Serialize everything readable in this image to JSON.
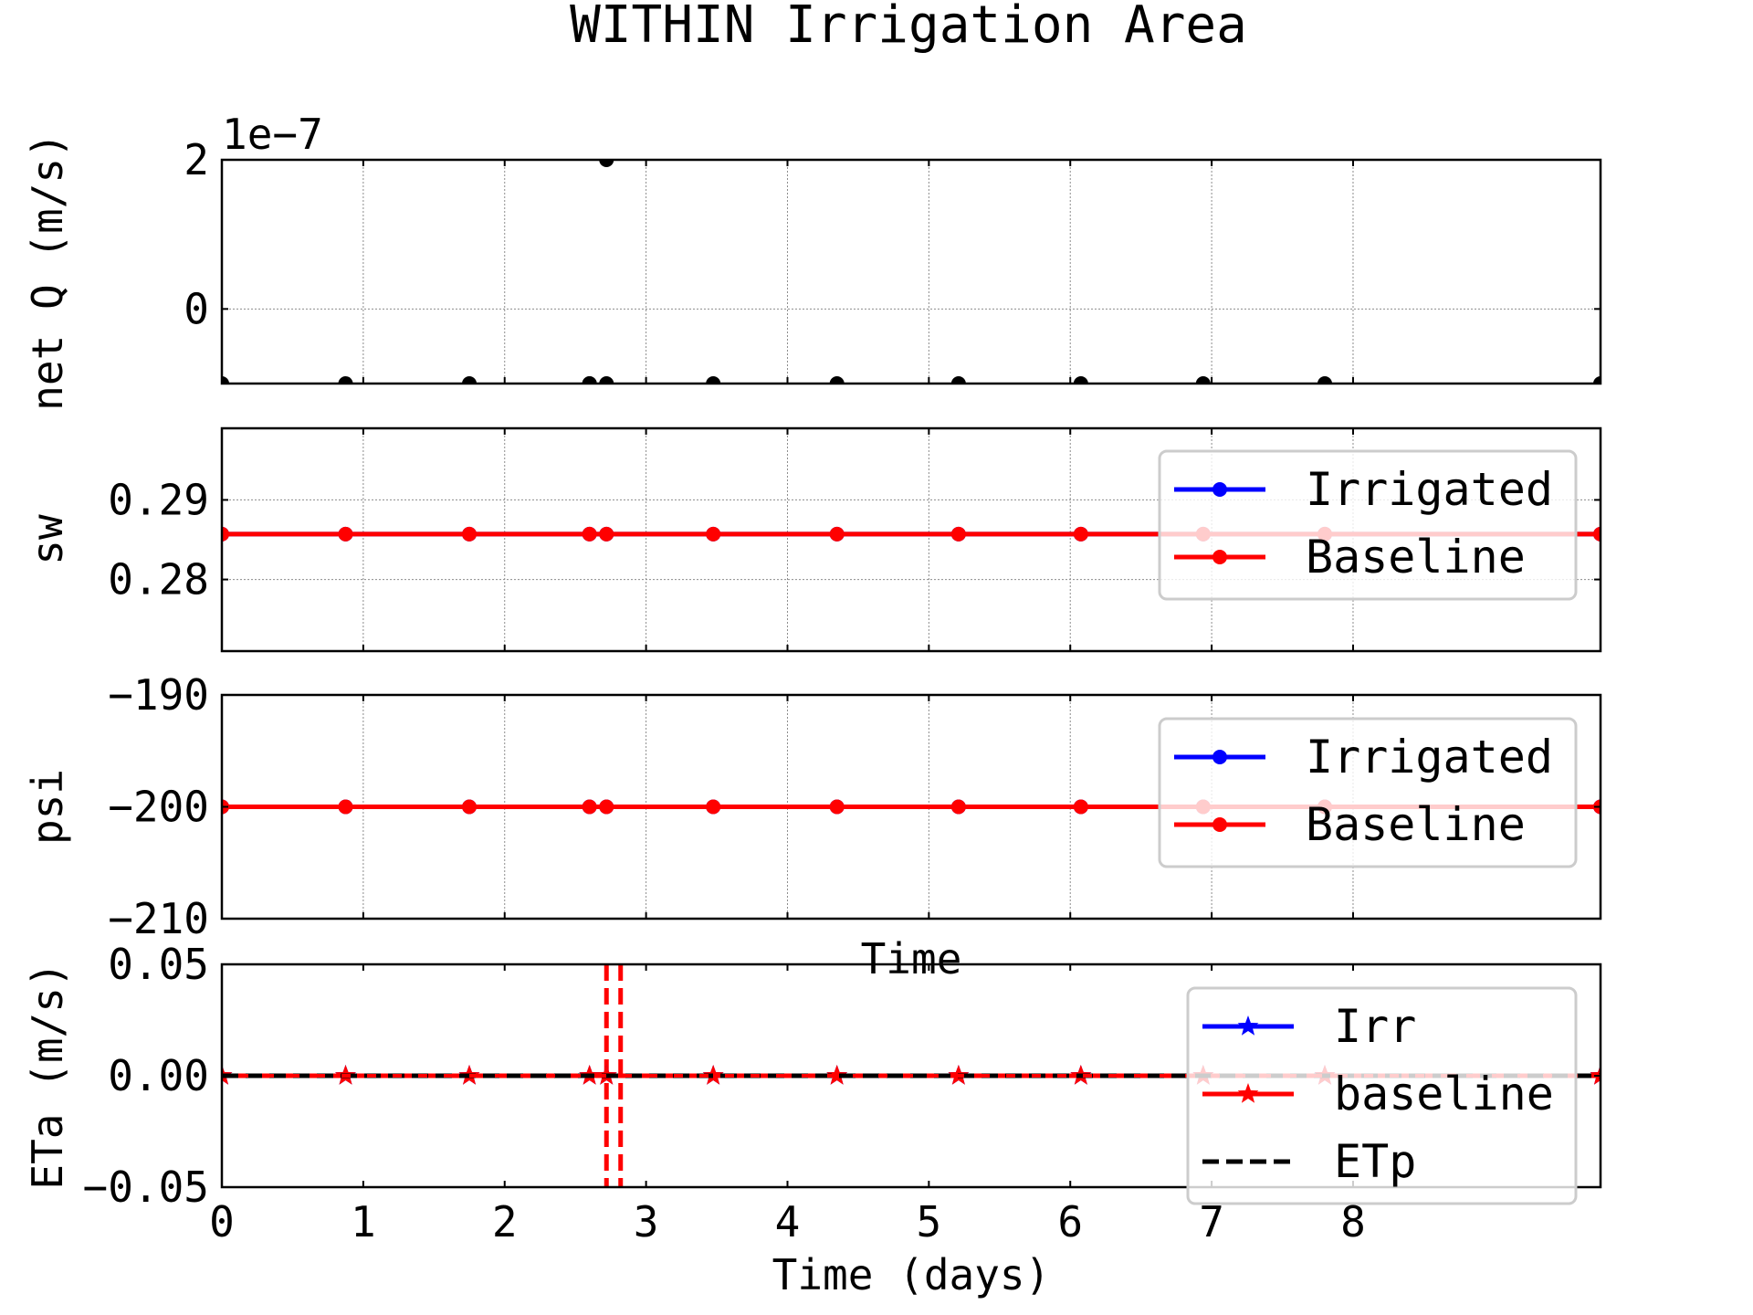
{
  "figure": {
    "title": "WITHIN Irrigation Area"
  },
  "chart_data": [
    {
      "type": "scatter",
      "id": "netq",
      "title": "",
      "xlabel": "",
      "ylabel": "net Q (m/s)",
      "offset_label": "1e−7",
      "xlim": [
        0,
        9.75
      ],
      "ylim": [
        -1.0,
        2.0
      ],
      "x_ticks": [
        1,
        2,
        3,
        4,
        5,
        6,
        7,
        8
      ],
      "x_tick_labels": [],
      "y_ticks": [
        0,
        2
      ],
      "y_tick_labels": [
        "0",
        "2"
      ],
      "grid": true,
      "legend": null,
      "series": [
        {
          "color": "#000000",
          "marker": "circle",
          "x": [
            0,
            0.875,
            1.75,
            2.6,
            2.72,
            3.475,
            4.35,
            5.21,
            6.075,
            6.94,
            7.8
          ],
          "y": [
            -1.0,
            -1.0,
            -1.0,
            -1.0,
            2.0,
            -1.0,
            -1.0,
            -1.0,
            -1.0,
            -1.0,
            -1.0
          ],
          "extra_points": [
            [
              2.6,
              -1.0
            ],
            [
              2.72,
              -1.0
            ]
          ]
        }
      ]
    },
    {
      "type": "line",
      "id": "sw",
      "title": "",
      "xlabel": "",
      "ylabel": "sw",
      "xlim": [
        0,
        9.75
      ],
      "ylim": [
        0.271,
        0.299
      ],
      "x_ticks": [
        1,
        2,
        3,
        4,
        5,
        6,
        7,
        8
      ],
      "x_tick_labels": [],
      "y_ticks": [
        0.28,
        0.29
      ],
      "y_tick_labels": [
        "0.28",
        "0.29"
      ],
      "grid": true,
      "legend": "top-right",
      "series": [
        {
          "name": "Irrigated",
          "color": "#0000ff",
          "marker": "circle",
          "x": [
            0,
            0.875,
            1.75,
            2.6,
            2.72,
            3.475,
            4.35,
            5.21,
            6.075,
            6.94,
            7.8
          ],
          "y": [
            0.2857,
            0.2857,
            0.2857,
            0.2857,
            0.2857,
            0.2857,
            0.2857,
            0.2857,
            0.2857,
            0.2857,
            0.2857
          ]
        },
        {
          "name": "Baseline",
          "color": "#ff0000",
          "marker": "circle",
          "x": [
            0,
            0.875,
            1.75,
            2.6,
            2.72,
            3.475,
            4.35,
            5.21,
            6.075,
            6.94,
            7.8
          ],
          "y": [
            0.2857,
            0.2857,
            0.2857,
            0.2857,
            0.2857,
            0.2857,
            0.2857,
            0.2857,
            0.2857,
            0.2857,
            0.2857
          ]
        }
      ]
    },
    {
      "type": "line",
      "id": "psi",
      "title": "",
      "xlabel": "Time",
      "ylabel": "psi",
      "xlim": [
        0,
        9.75
      ],
      "ylim": [
        -210,
        -190
      ],
      "x_ticks": [
        1,
        2,
        3,
        4,
        5,
        6,
        7,
        8
      ],
      "x_tick_labels": [],
      "y_ticks": [
        -210,
        -200,
        -190
      ],
      "y_tick_labels": [
        "−210",
        "−200",
        "−190"
      ],
      "grid": true,
      "legend": "top-right",
      "series": [
        {
          "name": "Irrigated",
          "color": "#0000ff",
          "marker": "circle",
          "x": [
            0,
            0.875,
            1.75,
            2.6,
            2.72,
            3.475,
            4.35,
            5.21,
            6.075,
            6.94,
            7.8
          ],
          "y": [
            -200,
            -200,
            -200,
            -200,
            -200,
            -200,
            -200,
            -200,
            -200,
            -200,
            -200
          ]
        },
        {
          "name": "Baseline",
          "color": "#ff0000",
          "marker": "circle",
          "x": [
            0,
            0.875,
            1.75,
            2.6,
            2.72,
            3.475,
            4.35,
            5.21,
            6.075,
            6.94,
            7.8
          ],
          "y": [
            -200,
            -200,
            -200,
            -200,
            -200,
            -200,
            -200,
            -200,
            -200,
            -200,
            -200
          ]
        }
      ]
    },
    {
      "type": "line",
      "id": "eta",
      "title": "",
      "xlabel": "Time (days)",
      "ylabel": "ETa (m/s)",
      "xlim": [
        0,
        9.75
      ],
      "ylim": [
        -0.05,
        0.05
      ],
      "x_ticks": [
        0,
        1,
        2,
        3,
        4,
        5,
        6,
        7,
        8
      ],
      "x_tick_labels": [
        "0",
        "1",
        "2",
        "3",
        "4",
        "5",
        "6",
        "7",
        "8"
      ],
      "y_ticks": [
        -0.05,
        0.0,
        0.05
      ],
      "y_tick_labels": [
        "−0.05",
        "0.00",
        "0.05"
      ],
      "grid": false,
      "legend": "top-right",
      "vlines": [
        2.72,
        2.82
      ],
      "vline_color": "#ff0000",
      "series": [
        {
          "name": "Irr",
          "color": "#0000ff",
          "marker": "star",
          "x": [
            0,
            0.875,
            1.75,
            2.6,
            2.72,
            3.475,
            4.35,
            5.21,
            6.075,
            6.94,
            7.8
          ],
          "y": [
            0,
            0,
            0,
            0,
            0,
            0,
            0,
            0,
            0,
            0,
            0
          ]
        },
        {
          "name": "baseline",
          "color": "#ff0000",
          "marker": "star",
          "x": [
            0,
            0.875,
            1.75,
            2.6,
            2.72,
            3.475,
            4.35,
            5.21,
            6.075,
            6.94,
            7.8
          ],
          "y": [
            0,
            0,
            0,
            0,
            0,
            0,
            0,
            0,
            0,
            0,
            0
          ]
        },
        {
          "name": "ETp",
          "color": "#000000",
          "marker": "none",
          "dashed": true,
          "x": [
            0,
            9.75
          ],
          "y": [
            0,
            0
          ]
        }
      ]
    }
  ]
}
